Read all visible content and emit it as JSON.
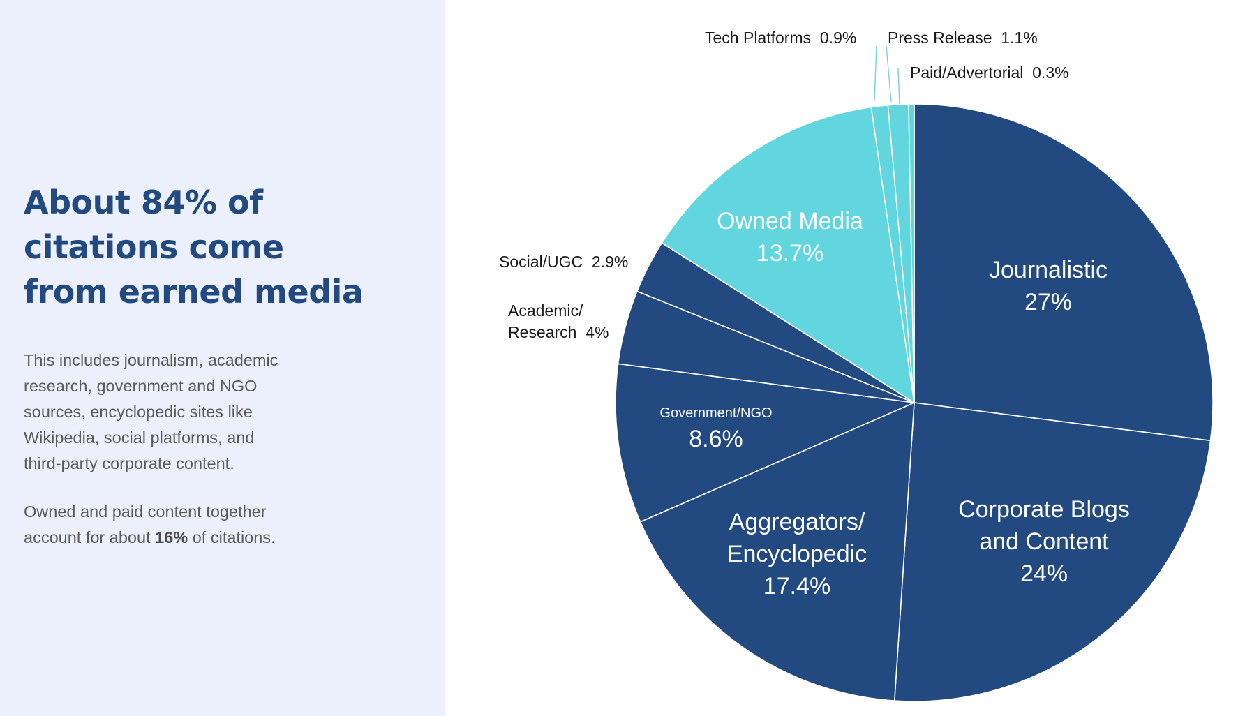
{
  "left_panel": {
    "headline_lines": [
      "About 84% of",
      "citations come",
      "from earned media"
    ],
    "paragraph1_lines": [
      "This includes journalism, academic",
      "research, government and NGO",
      "sources, encyclopedic sites like",
      "Wikipedia, social platforms, and",
      "third-party corporate content."
    ],
    "paragraph2_line1": "Owned and paid content together",
    "paragraph2_line2_before": "account for about ",
    "paragraph2_line2_bold": "16%",
    "paragraph2_line2_after": " of citations."
  },
  "colors": {
    "earned": "#224a80",
    "owned": "#62d6df",
    "panel_background": "#ebf0fc",
    "headline": "#224a80",
    "body_text": "#5b5b5b",
    "inner_label": "#ffffff",
    "outer_label": "#1a1a1a",
    "leader_line": "#7fd0d9"
  },
  "chart_data": {
    "type": "pie",
    "start": "12 o'clock, clockwise",
    "slices": [
      {
        "label_lines": [
          "Journalistic"
        ],
        "value_label": "27%",
        "value": 27,
        "group": "earned",
        "label_position": "inside"
      },
      {
        "label_lines": [
          "Corporate Blogs",
          "and Content"
        ],
        "value_label": "24%",
        "value": 24,
        "group": "earned",
        "label_position": "inside"
      },
      {
        "label_lines": [
          "Aggregators/",
          "Encyclopedic"
        ],
        "value_label": "17.4%",
        "value": 17.4,
        "group": "earned",
        "label_position": "inside"
      },
      {
        "label_lines": [
          "Government/NGO"
        ],
        "value_label": "8.6%",
        "value": 8.6,
        "group": "earned",
        "label_position": "inside",
        "small_label": true
      },
      {
        "label_lines": [
          "Academic/",
          "Research"
        ],
        "value_label": "4%",
        "value": 4,
        "group": "earned",
        "label_position": "outside"
      },
      {
        "label_lines": [
          "Social/UGC"
        ],
        "value_label": "2.9%",
        "value": 2.9,
        "group": "earned",
        "label_position": "outside"
      },
      {
        "label_lines": [
          "Owned Media"
        ],
        "value_label": "13.7%",
        "value": 13.7,
        "group": "owned",
        "label_position": "inside"
      },
      {
        "label_lines": [
          "Tech Platforms"
        ],
        "value_label": "0.9%",
        "value": 0.9,
        "group": "owned",
        "label_position": "outside"
      },
      {
        "label_lines": [
          "Press Release"
        ],
        "value_label": "1.1%",
        "value": 1.1,
        "group": "owned",
        "label_position": "outside"
      },
      {
        "label_lines": [
          "Paid/Advertorial"
        ],
        "value_label": "0.3%",
        "value": 0.3,
        "group": "owned",
        "label_position": "outside"
      }
    ]
  }
}
